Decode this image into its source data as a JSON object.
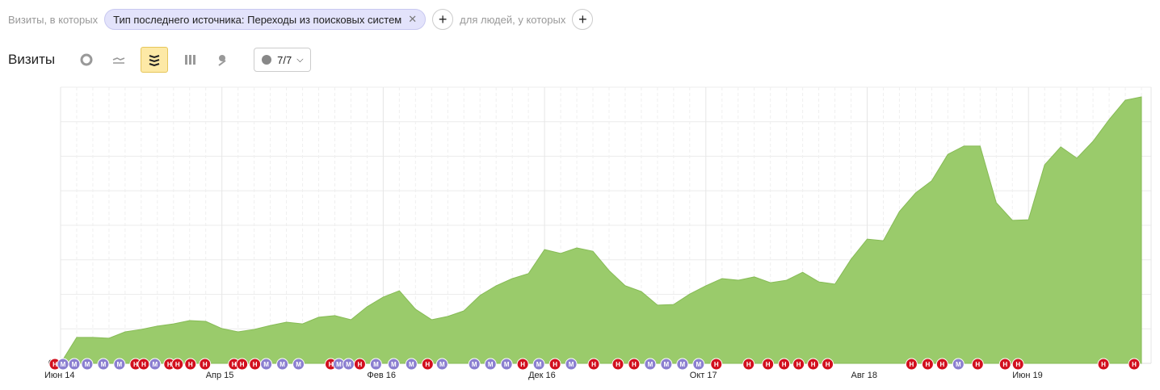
{
  "filter": {
    "prefix": "Визиты, в которых",
    "chip": "Тип последнего источника: Переходы из поисковых систем",
    "people": "для людей, у которых"
  },
  "toolbar": {
    "title": "Визиты",
    "notes_count": "7/7"
  },
  "chart_data": {
    "type": "area",
    "color": "#9acb6b",
    "line_color": "#86bb55",
    "categories": [
      "Июн 14",
      null,
      null,
      null,
      null,
      null,
      null,
      null,
      null,
      null,
      "Апр 15",
      null,
      null,
      null,
      null,
      null,
      null,
      null,
      null,
      null,
      "Фев 16",
      null,
      null,
      null,
      null,
      null,
      null,
      null,
      null,
      null,
      "Дек 16",
      null,
      null,
      null,
      null,
      null,
      null,
      null,
      null,
      null,
      "Окт 17",
      null,
      null,
      null,
      null,
      null,
      null,
      null,
      null,
      null,
      "Авг 18",
      null,
      null,
      null,
      null,
      null,
      null,
      null,
      null,
      null,
      "Июн 19",
      null,
      null,
      null,
      null,
      null,
      null,
      null
    ],
    "values": [
      0,
      9.4,
      9.4,
      9.1,
      11.4,
      12.3,
      13.5,
      14.3,
      15.5,
      15.2,
      12.6,
      11.4,
      12.3,
      13.7,
      14.9,
      14.3,
      16.7,
      17.3,
      15.8,
      20.5,
      24.0,
      26.3,
      19.6,
      15.8,
      17.0,
      19.0,
      24.6,
      28.1,
      30.7,
      32.5,
      41.2,
      39.8,
      41.8,
      40.6,
      33.6,
      28.1,
      26.0,
      21.1,
      21.3,
      25.1,
      28.1,
      30.7,
      30.1,
      31.3,
      29.2,
      30.1,
      33.0,
      29.5,
      28.7,
      37.7,
      45.0,
      44.4,
      55.0,
      61.7,
      66.1,
      75.7,
      78.7,
      78.7,
      58.2,
      51.8,
      52.0,
      71.9,
      78.4,
      74.3,
      80.4,
      88.3,
      95.3,
      96.5
    ],
    "ylim": [
      0,
      100
    ],
    "yticks": [
      0
    ],
    "grid": true,
    "event_colors": {
      "Н": "#d2101e",
      "М": "#8b7fd0"
    },
    "events": [
      {
        "label": "Н",
        "x": -0.35
      },
      {
        "label": "М",
        "x": 0.15
      },
      {
        "label": "М",
        "x": 0.85
      },
      {
        "label": "М",
        "x": 1.65
      },
      {
        "label": "М",
        "x": 2.65
      },
      {
        "label": "М",
        "x": 3.65
      },
      {
        "label": "Н",
        "x": 4.65
      },
      {
        "label": "Н",
        "x": 5.15
      },
      {
        "label": "М",
        "x": 5.85
      },
      {
        "label": "Н",
        "x": 6.75
      },
      {
        "label": "Н",
        "x": 7.25
      },
      {
        "label": "Н",
        "x": 8.05
      },
      {
        "label": "Н",
        "x": 8.95
      },
      {
        "label": "Н",
        "x": 10.75
      },
      {
        "label": "Н",
        "x": 11.25
      },
      {
        "label": "Н",
        "x": 12.05
      },
      {
        "label": "М",
        "x": 12.75
      },
      {
        "label": "М",
        "x": 13.75
      },
      {
        "label": "М",
        "x": 14.75
      },
      {
        "label": "Н",
        "x": 16.75
      },
      {
        "label": "М",
        "x": 17.25
      },
      {
        "label": "М",
        "x": 17.85
      },
      {
        "label": "Н",
        "x": 18.55
      },
      {
        "label": "М",
        "x": 19.55
      },
      {
        "label": "М",
        "x": 20.65
      },
      {
        "label": "М",
        "x": 21.75
      },
      {
        "label": "Н",
        "x": 22.75
      },
      {
        "label": "М",
        "x": 23.65
      },
      {
        "label": "М",
        "x": 25.65
      },
      {
        "label": "М",
        "x": 26.65
      },
      {
        "label": "М",
        "x": 27.65
      },
      {
        "label": "Н",
        "x": 28.65
      },
      {
        "label": "М",
        "x": 29.65
      },
      {
        "label": "Н",
        "x": 30.65
      },
      {
        "label": "М",
        "x": 31.65
      },
      {
        "label": "Н",
        "x": 33.05
      },
      {
        "label": "Н",
        "x": 34.55
      },
      {
        "label": "Н",
        "x": 35.55
      },
      {
        "label": "М",
        "x": 36.55
      },
      {
        "label": "М",
        "x": 37.55
      },
      {
        "label": "М",
        "x": 38.55
      },
      {
        "label": "М",
        "x": 39.55
      },
      {
        "label": "Н",
        "x": 40.65
      },
      {
        "label": "Н",
        "x": 42.65
      },
      {
        "label": "Н",
        "x": 43.85
      },
      {
        "label": "Н",
        "x": 44.85
      },
      {
        "label": "Н",
        "x": 45.75
      },
      {
        "label": "Н",
        "x": 46.65
      },
      {
        "label": "Н",
        "x": 47.55
      },
      {
        "label": "Н",
        "x": 52.75
      },
      {
        "label": "Н",
        "x": 53.75
      },
      {
        "label": "Н",
        "x": 54.65
      },
      {
        "label": "М",
        "x": 55.65
      },
      {
        "label": "Н",
        "x": 56.85
      },
      {
        "label": "Н",
        "x": 58.55
      },
      {
        "label": "Н",
        "x": 59.35
      },
      {
        "label": "Н",
        "x": 64.65
      },
      {
        "label": "Н",
        "x": 66.55
      }
    ]
  }
}
